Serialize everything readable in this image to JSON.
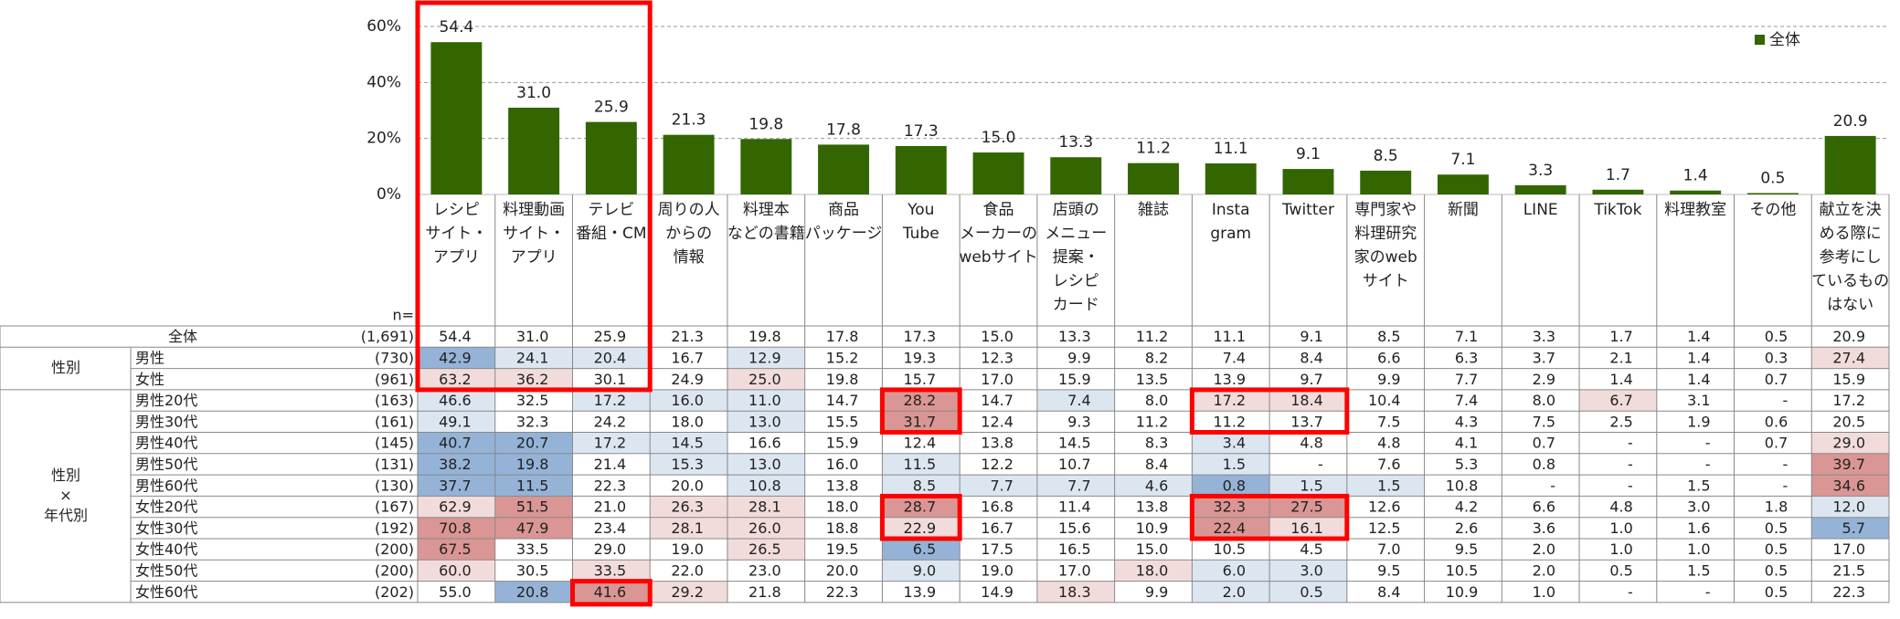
{
  "chart_data": {
    "type": "bar",
    "color": "#336600",
    "grid": true,
    "legend": "top-right",
    "legend_label": "全体",
    "ylim": [
      0,
      60
    ],
    "yticks": [
      {
        "value": 0,
        "label": "0%"
      },
      {
        "value": 20,
        "label": "20%"
      },
      {
        "value": 40,
        "label": "40%"
      },
      {
        "value": 60,
        "label": "60%"
      }
    ],
    "categories": [
      [
        "レシピ",
        "サイト・",
        "アプリ"
      ],
      [
        "料理動画",
        "サイト・",
        "アプリ"
      ],
      [
        "テレビ",
        "番組・CM"
      ],
      [
        "周りの人",
        "からの",
        "情報"
      ],
      [
        "料理本",
        "などの書籍"
      ],
      [
        "商品",
        "パッケージ"
      ],
      [
        "You",
        "Tube"
      ],
      [
        "食品",
        "メーカーの",
        "webサイト"
      ],
      [
        "店頭の",
        "メニュー",
        "提案・",
        "レシピ",
        "カード"
      ],
      [
        "雑誌"
      ],
      [
        "Insta",
        "gram"
      ],
      [
        "Twitter"
      ],
      [
        "専門家や",
        "料理研究",
        "家のweb",
        "サイト"
      ],
      [
        "新聞"
      ],
      [
        "LINE"
      ],
      [
        "TikTok"
      ],
      [
        "料理教室"
      ],
      [
        "その他"
      ],
      [
        "献立を決",
        "める際に",
        "参考にし",
        "ているもの",
        "はない"
      ]
    ],
    "values": [
      54.4,
      31.0,
      25.9,
      21.3,
      19.8,
      17.8,
      17.3,
      15.0,
      13.3,
      11.2,
      11.1,
      9.1,
      8.5,
      7.1,
      3.3,
      1.7,
      1.4,
      0.5,
      20.9
    ],
    "value_labels": [
      "54.4",
      "31.0",
      "25.9",
      "21.3",
      "19.8",
      "17.8",
      "17.3",
      "15.0",
      "13.3",
      "11.2",
      "11.1",
      "9.1",
      "8.5",
      "7.1",
      "3.3",
      "1.7",
      "1.4",
      "0.5",
      "20.9"
    ]
  },
  "table": {
    "n_label": "n=",
    "total": {
      "label": "全体",
      "n": "(1,691)",
      "cells": [
        "54.4",
        "31.0",
        "25.9",
        "21.3",
        "19.8",
        "17.8",
        "17.3",
        "15.0",
        "13.3",
        "11.2",
        "11.1",
        "9.1",
        "8.5",
        "7.1",
        "3.3",
        "1.7",
        "1.4",
        "0.5",
        "20.9"
      ]
    },
    "groups": [
      {
        "label": [
          "性別"
        ],
        "rows": [
          {
            "label": "男性",
            "n": "(730)",
            "cells": [
              "42.9",
              "24.1",
              "20.4",
              "16.7",
              "12.9",
              "15.2",
              "19.3",
              "12.3",
              "9.9",
              "8.2",
              "7.4",
              "8.4",
              "6.6",
              "6.3",
              "3.7",
              "2.1",
              "1.4",
              "0.3",
              "27.4"
            ]
          },
          {
            "label": "女性",
            "n": "(961)",
            "cells": [
              "63.2",
              "36.2",
              "30.1",
              "24.9",
              "25.0",
              "19.8",
              "15.7",
              "17.0",
              "15.9",
              "13.5",
              "13.9",
              "9.7",
              "9.9",
              "7.7",
              "2.9",
              "1.4",
              "1.4",
              "0.7",
              "15.9"
            ]
          }
        ]
      },
      {
        "label": [
          "性別",
          "×",
          "年代別"
        ],
        "rows": [
          {
            "label": "男性20代",
            "n": "(163)",
            "cells": [
              "46.6",
              "32.5",
              "17.2",
              "16.0",
              "11.0",
              "14.7",
              "28.2",
              "14.7",
              "7.4",
              "8.0",
              "17.2",
              "18.4",
              "10.4",
              "7.4",
              "8.0",
              "6.7",
              "3.1",
              "-",
              "17.2"
            ]
          },
          {
            "label": "男性30代",
            "n": "(161)",
            "cells": [
              "49.1",
              "32.3",
              "24.2",
              "18.0",
              "13.0",
              "15.5",
              "31.7",
              "12.4",
              "9.3",
              "11.2",
              "11.2",
              "13.7",
              "7.5",
              "4.3",
              "7.5",
              "2.5",
              "1.9",
              "0.6",
              "20.5"
            ]
          },
          {
            "label": "男性40代",
            "n": "(145)",
            "cells": [
              "40.7",
              "20.7",
              "17.2",
              "14.5",
              "16.6",
              "15.9",
              "12.4",
              "13.8",
              "14.5",
              "8.3",
              "3.4",
              "4.8",
              "4.8",
              "4.1",
              "0.7",
              "-",
              "-",
              "0.7",
              "29.0"
            ]
          },
          {
            "label": "男性50代",
            "n": "(131)",
            "cells": [
              "38.2",
              "19.8",
              "21.4",
              "15.3",
              "13.0",
              "16.0",
              "11.5",
              "12.2",
              "10.7",
              "8.4",
              "1.5",
              "-",
              "7.6",
              "5.3",
              "0.8",
              "-",
              "-",
              "-",
              "39.7"
            ]
          },
          {
            "label": "男性60代",
            "n": "(130)",
            "cells": [
              "37.7",
              "11.5",
              "22.3",
              "20.0",
              "10.8",
              "13.8",
              "8.5",
              "7.7",
              "7.7",
              "4.6",
              "0.8",
              "1.5",
              "1.5",
              "10.8",
              "-",
              "-",
              "1.5",
              "-",
              "34.6"
            ]
          },
          {
            "label": "女性20代",
            "n": "(167)",
            "cells": [
              "62.9",
              "51.5",
              "21.0",
              "26.3",
              "28.1",
              "18.0",
              "28.7",
              "16.8",
              "11.4",
              "13.8",
              "32.3",
              "27.5",
              "12.6",
              "4.2",
              "6.6",
              "4.8",
              "3.0",
              "1.8",
              "12.0"
            ]
          },
          {
            "label": "女性30代",
            "n": "(192)",
            "cells": [
              "70.8",
              "47.9",
              "23.4",
              "28.1",
              "26.0",
              "18.8",
              "22.9",
              "16.7",
              "15.6",
              "10.9",
              "22.4",
              "16.1",
              "12.5",
              "2.6",
              "3.6",
              "1.0",
              "1.6",
              "0.5",
              "5.7"
            ]
          },
          {
            "label": "女性40代",
            "n": "(200)",
            "cells": [
              "67.5",
              "33.5",
              "29.0",
              "19.0",
              "26.5",
              "19.5",
              "6.5",
              "17.5",
              "16.5",
              "15.0",
              "10.5",
              "4.5",
              "7.0",
              "9.5",
              "2.0",
              "1.0",
              "1.0",
              "0.5",
              "17.0"
            ]
          },
          {
            "label": "女性50代",
            "n": "(200)",
            "cells": [
              "60.0",
              "30.5",
              "33.5",
              "22.0",
              "23.0",
              "20.0",
              "9.0",
              "19.0",
              "17.0",
              "18.0",
              "6.0",
              "3.0",
              "9.5",
              "10.5",
              "2.0",
              "0.5",
              "1.5",
              "0.5",
              "21.5"
            ]
          },
          {
            "label": "女性60代",
            "n": "(202)",
            "cells": [
              "55.0",
              "20.8",
              "41.6",
              "29.2",
              "21.8",
              "22.3",
              "13.9",
              "14.9",
              "18.3",
              "9.9",
              "2.0",
              "0.5",
              "8.4",
              "10.9",
              "1.0",
              "-",
              "-",
              "0.5",
              "22.3"
            ]
          }
        ]
      }
    ]
  }
}
